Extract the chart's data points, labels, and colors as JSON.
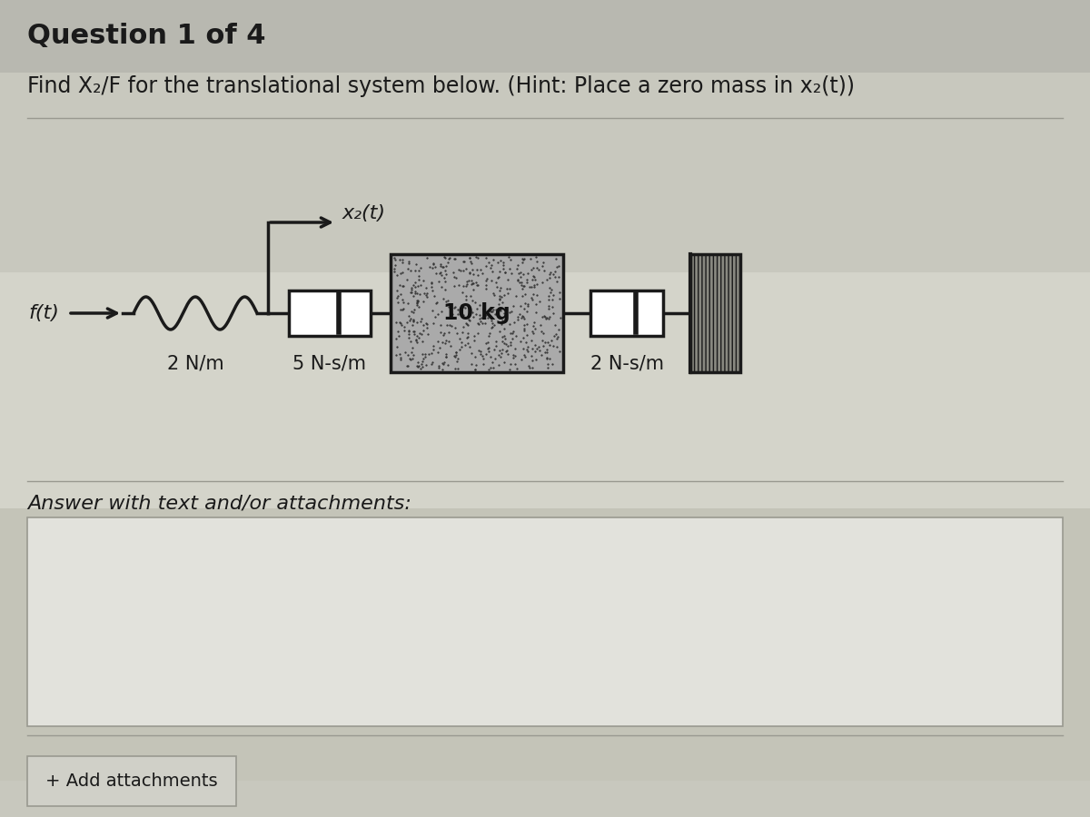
{
  "bg_top": "#b8b8b8",
  "bg_mid": "#d0cfc8",
  "bg_bot": "#c8c8c0",
  "panel_color": "#c8c8c0",
  "title": "Question 1 of 4",
  "subtitle": "Find X₂/F for the translational system below. (Hint: Place a zero mass in x₂(t))",
  "label_ft": "f(t)",
  "label_x2": "x₂(t)",
  "label_spring": "2 N/m",
  "label_d1": "5 N-s/m",
  "label_d2": "2 N-s/m",
  "label_mass": "10 kg",
  "answer_label": "Answer with text and/or attachments:",
  "add_attach": "+ Add attachments",
  "line_color": "#1a1a1a",
  "text_color": "#1a1a1a",
  "mass_hatch_color": "#555555",
  "wall_hatch_color": "#555555",
  "answer_box_color": "#e2e2dc",
  "btn_color": "#d0d0c8",
  "sep_color": "#999990"
}
